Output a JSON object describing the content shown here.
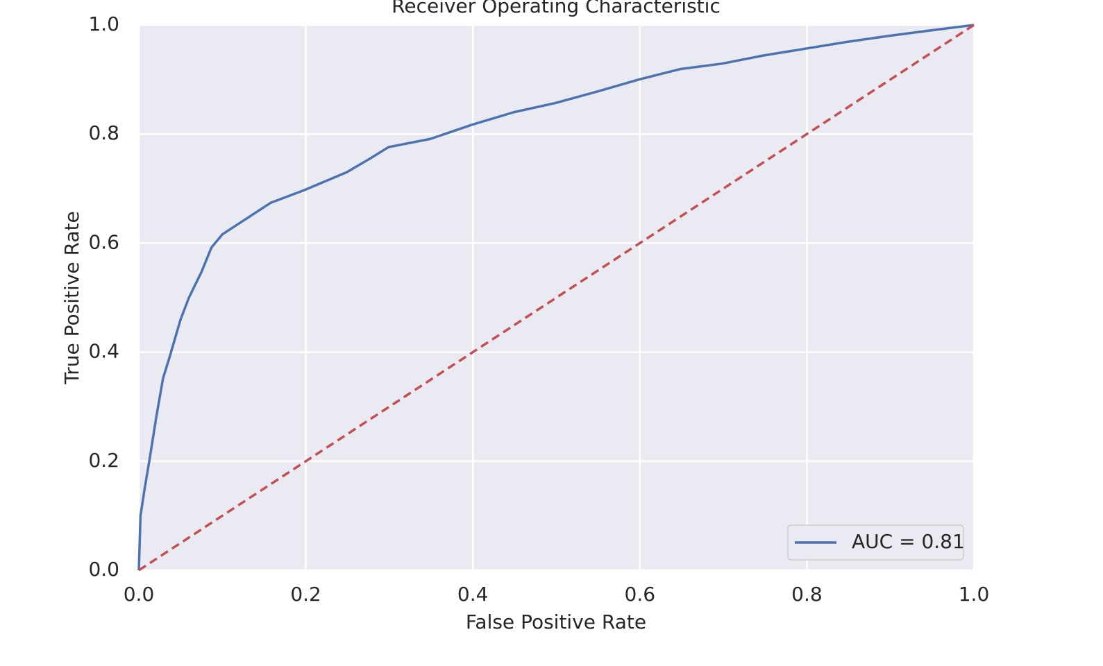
{
  "chart_data": {
    "type": "line",
    "title": "Receiver Operating Characteristic",
    "x_label": "False Positive Rate",
    "y_label": "True Positive Rate",
    "xlim": [
      0,
      1
    ],
    "ylim": [
      0,
      1
    ],
    "xticks": [
      {
        "value": 0,
        "label": "0.0"
      },
      0.2,
      0.4,
      0.6,
      0.8,
      {
        "value": 1,
        "label": "1.0"
      }
    ],
    "yticks": [
      {
        "value": 0,
        "label": "0.0"
      },
      0.2,
      0.4,
      0.6,
      0.8,
      {
        "value": 1,
        "label": "1.0"
      }
    ],
    "grid": true,
    "legend_position": "lower-right",
    "series": [
      {
        "name": "AUC = 0.81",
        "color": "#4c72b0",
        "dashed": false,
        "x": [
          0,
          0.002,
          0.007,
          0.0125,
          0.021,
          0.029,
          0.038,
          0.05,
          0.06,
          0.075,
          0.087,
          0.1,
          0.129,
          0.158,
          0.198,
          0.249,
          0.278,
          0.299,
          0.349,
          0.399,
          0.449,
          0.499,
          0.549,
          0.599,
          0.648,
          0.698,
          0.748,
          0.8,
          0.848,
          0.898,
          0.948,
          1
        ],
        "values": [
          0,
          0.1,
          0.15,
          0.2,
          0.282,
          0.352,
          0.397,
          0.46,
          0.5,
          0.547,
          0.592,
          0.616,
          0.645,
          0.674,
          0.697,
          0.73,
          0.756,
          0.776,
          0.791,
          0.817,
          0.84,
          0.857,
          0.878,
          0.9,
          0.919,
          0.929,
          0.944,
          0.957,
          0.969,
          0.98,
          0.99,
          1
        ]
      },
      {
        "color": "#c44e52",
        "dashed": true,
        "x": [
          0,
          1
        ],
        "values": [
          0,
          1
        ]
      }
    ]
  }
}
